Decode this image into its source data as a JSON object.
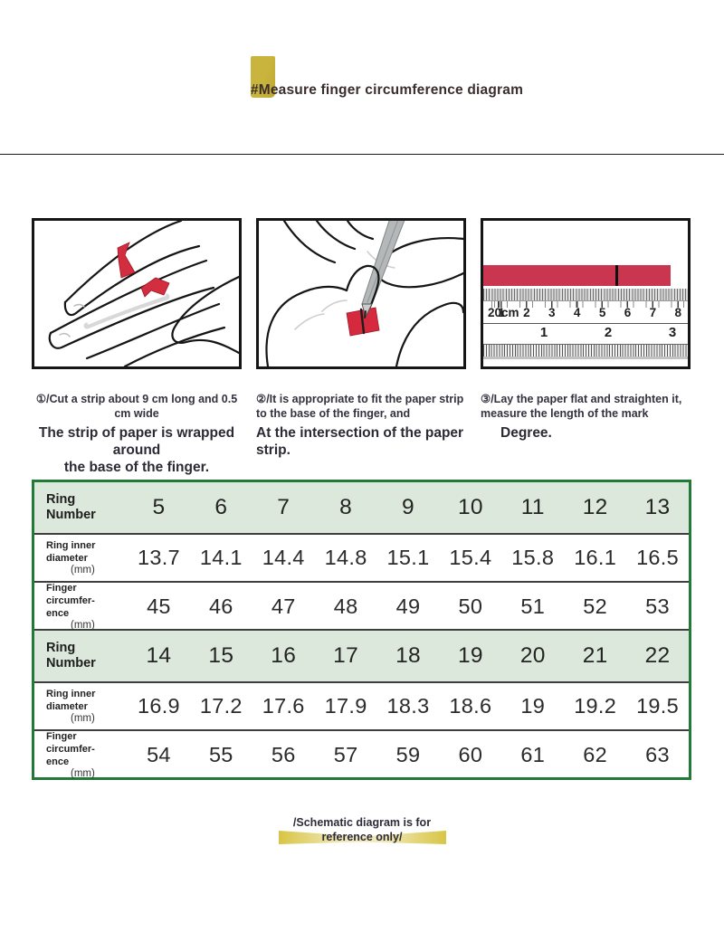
{
  "page": {
    "title": "#Measure finger circumference diagram",
    "footer_line1": "/Schematic diagram is for",
    "footer_line2": "reference only/"
  },
  "steps": [
    {
      "align": "center",
      "small_lines": [
        "①/Cut a strip about 9 cm long and 0.5 cm wide"
      ],
      "bold_lines": [
        "The strip of paper is wrapped around",
        "the base of the finger."
      ],
      "bold_indent": false
    },
    {
      "align": "left",
      "small_lines": [
        "②/It is appropriate to fit the paper strip",
        "to the base of the finger, and"
      ],
      "bold_lines": [
        "At the intersection of the paper",
        "strip."
      ],
      "bold_indent": false
    },
    {
      "align": "left",
      "small_lines": [
        "③/Lay the paper flat and straighten it,",
        "measure the length of the mark"
      ],
      "bold_lines": [
        "Degree."
      ],
      "bold_indent": true
    }
  ],
  "ruler": {
    "cm_numbers": [
      "1",
      "2",
      "3",
      "4",
      "5",
      "6",
      "7",
      "8"
    ],
    "cm_unit": "20cm",
    "inch_numbers": [
      "1",
      "2",
      "3"
    ]
  },
  "table": {
    "rows": [
      {
        "type": "header",
        "label_lines": [
          "Ring",
          "Number"
        ],
        "unit": "",
        "values": [
          "5",
          "6",
          "7",
          "8",
          "9",
          "10",
          "11",
          "12",
          "13"
        ]
      },
      {
        "type": "data",
        "label_lines": [
          "Ring inner",
          "diameter"
        ],
        "unit": "(mm)",
        "values": [
          "13.7",
          "14.1",
          "14.4",
          "14.8",
          "15.1",
          "15.4",
          "15.8",
          "16.1",
          "16.5"
        ]
      },
      {
        "type": "data",
        "label_lines": [
          "Finger circumfer-",
          "ence"
        ],
        "unit": "(mm)",
        "values": [
          "45",
          "46",
          "47",
          "48",
          "49",
          "50",
          "51",
          "52",
          "53"
        ]
      },
      {
        "type": "header",
        "label_lines": [
          "Ring",
          "Number"
        ],
        "unit": "",
        "values": [
          "14",
          "15",
          "16",
          "17",
          "18",
          "19",
          "20",
          "21",
          "22"
        ]
      },
      {
        "type": "data",
        "label_lines": [
          "Ring inner",
          "diameter"
        ],
        "unit": "(mm)",
        "values": [
          "16.9",
          "17.2",
          "17.6",
          "17.9",
          "18.3",
          "18.6",
          "19",
          "19.2",
          "19.5"
        ]
      },
      {
        "type": "data",
        "label_lines": [
          "Finger circumfer-",
          "ence"
        ],
        "unit": "(mm)",
        "values": [
          "54",
          "55",
          "56",
          "57",
          "59",
          "60",
          "61",
          "62",
          "63"
        ]
      }
    ]
  },
  "colors": {
    "accent_red": "#ca3650",
    "table_border_green": "#237a38",
    "table_header_green": "#dbe8db",
    "sticky_gold": "#c9b43e",
    "ribbon_gold": "#d8c544"
  }
}
